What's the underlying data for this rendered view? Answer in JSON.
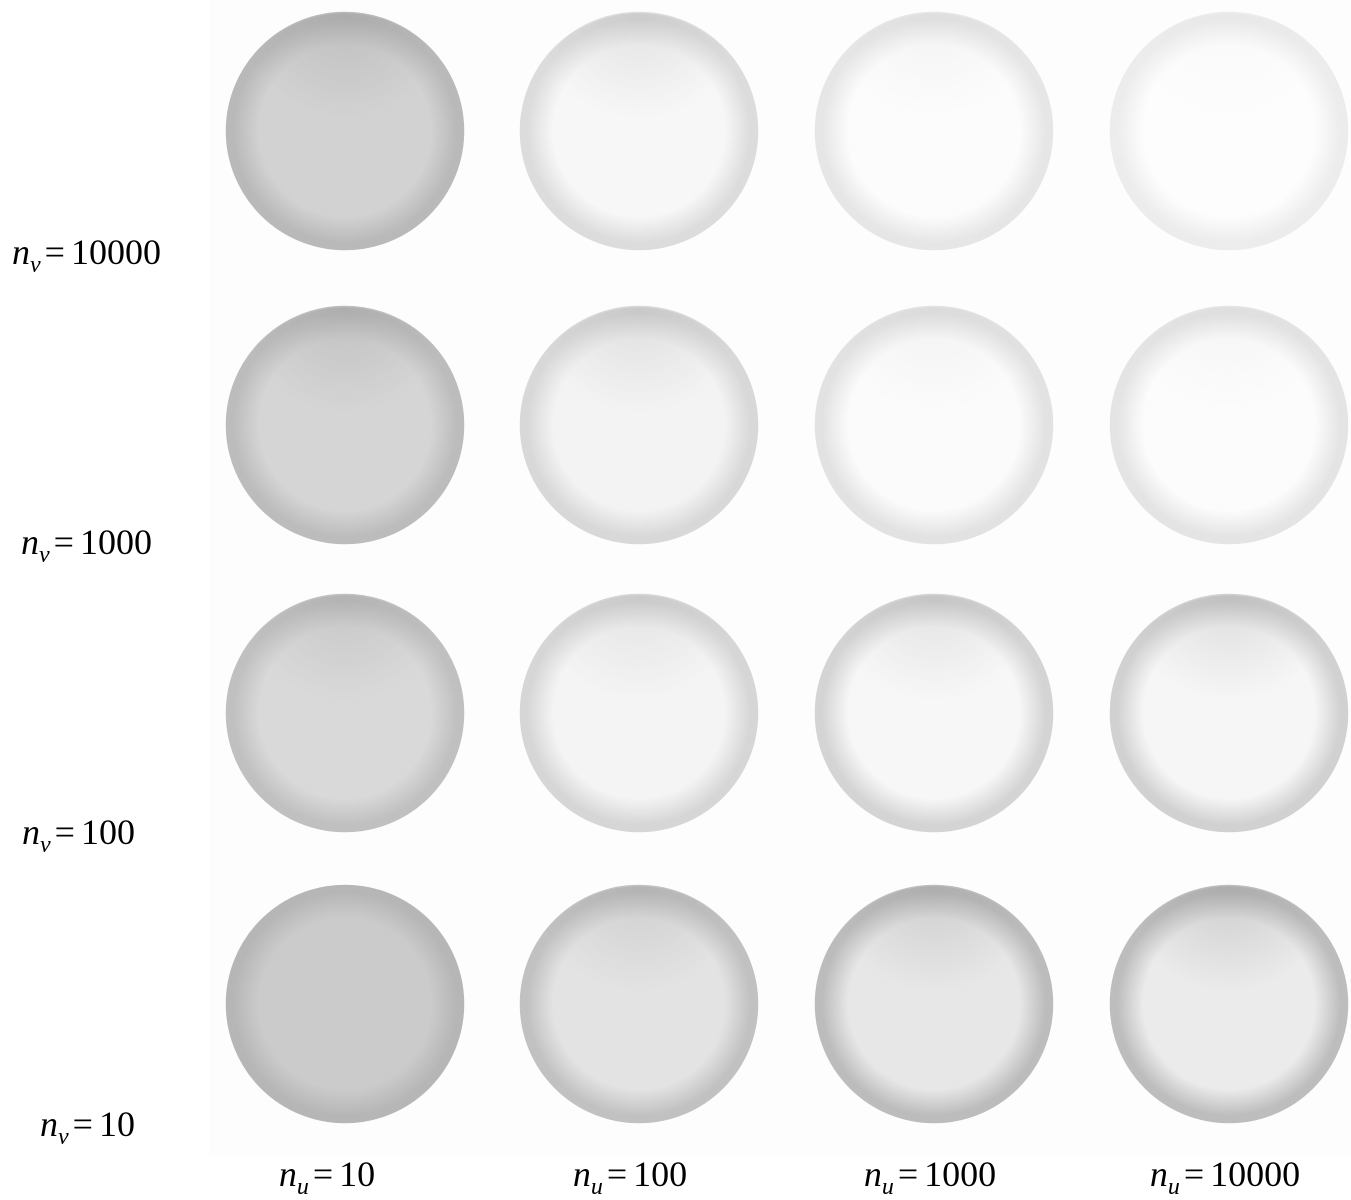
{
  "row_labels": [
    {
      "var": "n",
      "sub": "v",
      "eq": "=",
      "value": "10000"
    },
    {
      "var": "n",
      "sub": "v",
      "eq": "=",
      "value": "1000"
    },
    {
      "var": "n",
      "sub": "v",
      "eq": "=",
      "value": "100"
    },
    {
      "var": "n",
      "sub": "v",
      "eq": "=",
      "value": "10"
    }
  ],
  "col_labels": [
    {
      "var": "n",
      "sub": "u",
      "eq": "=",
      "value": "10"
    },
    {
      "var": "n",
      "sub": "u",
      "eq": "=",
      "value": "100"
    },
    {
      "var": "n",
      "sub": "u",
      "eq": "=",
      "value": "1000"
    },
    {
      "var": "n",
      "sub": "u",
      "eq": "=",
      "value": "10000"
    }
  ],
  "spheres": [
    [
      {
        "center": "#d2d2d2",
        "edge": "#b9b9b9",
        "highlight": 0.35
      },
      {
        "center": "#f7f7f7",
        "edge": "#dcdcdc",
        "highlight": 0.25
      },
      {
        "center": "#fcfcfc",
        "edge": "#e6e6e6",
        "highlight": 0.1
      },
      {
        "center": "#fdfdfd",
        "edge": "#ececec",
        "highlight": 0.05
      }
    ],
    [
      {
        "center": "#d5d5d5",
        "edge": "#bcbcbc",
        "highlight": 0.35
      },
      {
        "center": "#f3f3f3",
        "edge": "#d8d8d8",
        "highlight": 0.25
      },
      {
        "center": "#fbfbfb",
        "edge": "#e2e2e2",
        "highlight": 0.1
      },
      {
        "center": "#fcfcfc",
        "edge": "#e4e4e4",
        "highlight": 0.08
      }
    ],
    [
      {
        "center": "#d9d9d9",
        "edge": "#c0c0c0",
        "highlight": 0.3
      },
      {
        "center": "#f4f4f4",
        "edge": "#d6d6d6",
        "highlight": 0.2
      },
      {
        "center": "#f7f7f7",
        "edge": "#d4d4d4",
        "highlight": 0.25
      },
      {
        "center": "#f6f6f6",
        "edge": "#d1d1d1",
        "highlight": 0.3
      }
    ],
    [
      {
        "center": "#cbcbcb",
        "edge": "#b6b6b6",
        "highlight": 0.0
      },
      {
        "center": "#e3e3e3",
        "edge": "#c1c1c1",
        "highlight": 0.3
      },
      {
        "center": "#e7e7e7",
        "edge": "#bcbcbc",
        "highlight": 0.35
      },
      {
        "center": "#ebebeb",
        "edge": "#bdbdbd",
        "highlight": 0.4
      }
    ]
  ]
}
